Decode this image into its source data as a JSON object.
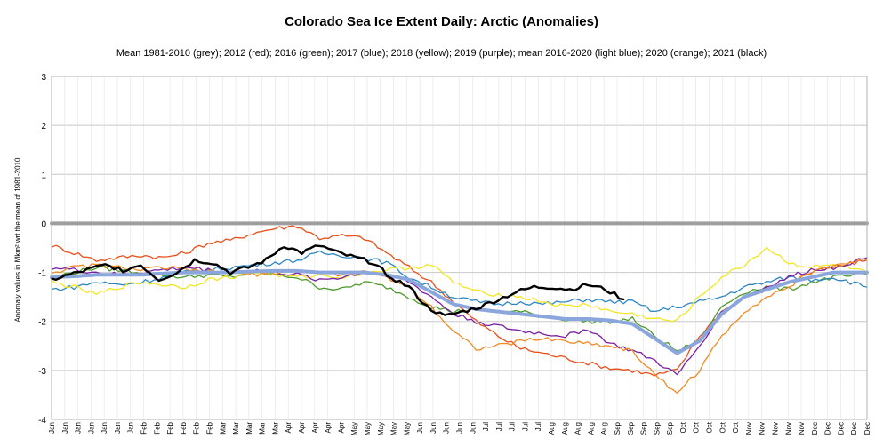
{
  "chart_data": {
    "type": "line",
    "title": "Colorado Sea Ice Extent Daily: Arctic (Anomalies)",
    "subtitle": "Mean 1981-2010 (grey); 2012 (red); 2016 (green); 2017 (blue); 2018 (yellow); 2019 (purple); mean 2016-2020 (light blue); 2020 (orange); 2021 (black)",
    "ylabel": "Anomaly values in Mkm² wrt the mean of 1981-2010",
    "ylim": [
      -4,
      3
    ],
    "yticks": [
      "3",
      "2",
      "1",
      "0",
      "-1",
      "-2",
      "-3",
      "-4"
    ],
    "xticks": [
      "Jan",
      "Jan",
      "Jan",
      "Jan",
      "Jan",
      "Jan",
      "Jan",
      "Feb",
      "Feb",
      "Feb",
      "Feb",
      "Feb",
      "Feb",
      "Mar",
      "Mar",
      "Mar",
      "Mar",
      "Mar",
      "Apr",
      "Apr",
      "Apr",
      "Apr",
      "Apr",
      "May",
      "May",
      "May",
      "May",
      "May",
      "Jun",
      "Jun",
      "Jun",
      "Jun",
      "Jun",
      "Jul",
      "Jul",
      "Jul",
      "Jul",
      "Jul",
      "Aug",
      "Aug",
      "Aug",
      "Aug",
      "Aug",
      "Sep",
      "Sep",
      "Sep",
      "Sep",
      "Sep",
      "Oct",
      "Oct",
      "Oct",
      "Oct",
      "Oct",
      "Nov",
      "Nov",
      "Nov",
      "Nov",
      "Nov",
      "Dec",
      "Dec",
      "Dec",
      "Dec",
      "Dec"
    ],
    "grid": true,
    "x_unit": "day_of_year",
    "series": [
      {
        "name": "Mean 1981-2010",
        "color": "#9e9e9e",
        "width": 4,
        "x": [
          0,
          365
        ],
        "y": [
          0,
          0
        ]
      },
      {
        "name": "2012",
        "color": "#e8501a",
        "width": 1.3,
        "x": [
          0,
          10,
          20,
          30,
          40,
          50,
          60,
          70,
          80,
          90,
          100,
          110,
          120,
          130,
          140,
          150,
          160,
          170,
          180,
          190,
          200,
          210,
          220,
          230,
          240,
          250,
          260,
          270,
          280,
          290,
          300,
          310,
          320,
          330,
          340,
          350,
          365
        ],
        "y": [
          -0.45,
          -0.6,
          -0.75,
          -0.7,
          -0.65,
          -0.7,
          -0.6,
          -0.4,
          -0.35,
          -0.2,
          -0.1,
          -0.05,
          -0.3,
          -0.25,
          -0.3,
          -0.6,
          -0.9,
          -1.2,
          -1.6,
          -2.0,
          -2.3,
          -2.55,
          -2.65,
          -2.75,
          -2.85,
          -2.95,
          -3.0,
          -3.1,
          -3.0,
          -2.3,
          -1.8,
          -1.5,
          -1.35,
          -1.2,
          -1.0,
          -0.9,
          -0.75
        ]
      },
      {
        "name": "2016",
        "color": "#4e9a2a",
        "width": 1.3,
        "x": [
          0,
          10,
          20,
          30,
          40,
          50,
          60,
          70,
          80,
          90,
          100,
          110,
          120,
          130,
          140,
          150,
          160,
          170,
          180,
          190,
          200,
          210,
          220,
          230,
          240,
          250,
          260,
          270,
          280,
          290,
          300,
          310,
          320,
          330,
          340,
          350,
          365
        ],
        "y": [
          -1.1,
          -1.0,
          -0.9,
          -0.95,
          -1.0,
          -1.05,
          -1.1,
          -1.05,
          -1.1,
          -1.0,
          -1.05,
          -1.1,
          -1.3,
          -1.35,
          -1.2,
          -1.3,
          -1.5,
          -1.7,
          -1.8,
          -1.75,
          -1.8,
          -1.8,
          -1.9,
          -1.95,
          -2.0,
          -2.0,
          -1.95,
          -2.3,
          -2.6,
          -2.4,
          -1.7,
          -1.4,
          -1.3,
          -1.35,
          -1.2,
          -1.1,
          -1.05
        ]
      },
      {
        "name": "2017",
        "color": "#2e86c1",
        "width": 1.3,
        "x": [
          0,
          10,
          20,
          30,
          40,
          50,
          60,
          70,
          80,
          90,
          100,
          110,
          120,
          130,
          140,
          150,
          160,
          170,
          180,
          190,
          200,
          210,
          220,
          230,
          240,
          250,
          260,
          270,
          280,
          290,
          300,
          310,
          320,
          330,
          340,
          350,
          365
        ],
        "y": [
          -1.35,
          -1.3,
          -1.2,
          -1.25,
          -1.2,
          -1.1,
          -1.0,
          -0.95,
          -0.9,
          -0.85,
          -0.8,
          -0.75,
          -0.6,
          -0.65,
          -0.7,
          -0.8,
          -1.1,
          -1.3,
          -1.5,
          -1.6,
          -1.65,
          -1.6,
          -1.65,
          -1.6,
          -1.55,
          -1.6,
          -1.6,
          -1.8,
          -1.7,
          -1.6,
          -1.5,
          -1.3,
          -1.2,
          -1.1,
          -1.15,
          -1.1,
          -1.3
        ]
      },
      {
        "name": "2018",
        "color": "#f2e622",
        "width": 1.3,
        "x": [
          0,
          10,
          20,
          30,
          40,
          50,
          60,
          70,
          80,
          90,
          100,
          110,
          120,
          130,
          140,
          150,
          160,
          170,
          180,
          190,
          200,
          210,
          220,
          230,
          240,
          250,
          260,
          270,
          280,
          290,
          300,
          310,
          320,
          330,
          340,
          350,
          365
        ],
        "y": [
          -1.2,
          -1.3,
          -1.45,
          -1.3,
          -1.2,
          -1.25,
          -1.3,
          -1.15,
          -1.1,
          -1.0,
          -1.05,
          -1.1,
          -1.05,
          -1.1,
          -1.0,
          -0.95,
          -0.9,
          -0.85,
          -1.2,
          -1.4,
          -1.45,
          -1.5,
          -1.6,
          -1.7,
          -1.65,
          -1.8,
          -1.85,
          -1.95,
          -2.0,
          -1.5,
          -1.1,
          -0.85,
          -0.5,
          -0.8,
          -0.9,
          -0.85,
          -1.0
        ]
      },
      {
        "name": "2019",
        "color": "#7b1fa2",
        "width": 1.3,
        "x": [
          0,
          10,
          20,
          30,
          40,
          50,
          60,
          70,
          80,
          90,
          100,
          110,
          120,
          130,
          140,
          150,
          160,
          170,
          180,
          190,
          200,
          210,
          220,
          230,
          240,
          250,
          260,
          270,
          280,
          290,
          300,
          310,
          320,
          330,
          340,
          350,
          365
        ],
        "y": [
          -0.9,
          -0.95,
          -1.0,
          -1.05,
          -1.0,
          -0.95,
          -0.9,
          -0.95,
          -1.0,
          -0.95,
          -1.0,
          -1.05,
          -1.15,
          -1.1,
          -1.0,
          -1.05,
          -1.2,
          -1.5,
          -1.85,
          -2.0,
          -2.1,
          -2.2,
          -2.25,
          -2.3,
          -2.15,
          -2.45,
          -2.6,
          -2.8,
          -3.1,
          -2.5,
          -1.8,
          -1.5,
          -1.3,
          -1.1,
          -0.95,
          -0.9,
          -0.7
        ]
      },
      {
        "name": "mean 2016-2020",
        "color": "#8aa6dc",
        "width": 4,
        "x": [
          0,
          10,
          20,
          30,
          40,
          50,
          60,
          70,
          80,
          90,
          100,
          110,
          120,
          130,
          140,
          150,
          160,
          170,
          180,
          190,
          200,
          210,
          220,
          230,
          240,
          250,
          260,
          270,
          280,
          290,
          300,
          310,
          320,
          330,
          340,
          350,
          365
        ],
        "y": [
          -1.1,
          -1.08,
          -1.05,
          -1.05,
          -1.05,
          -1.02,
          -1.0,
          -1.0,
          -1.0,
          -0.98,
          -0.97,
          -0.97,
          -1.0,
          -1.0,
          -1.0,
          -1.05,
          -1.15,
          -1.4,
          -1.65,
          -1.75,
          -1.8,
          -1.85,
          -1.9,
          -1.95,
          -1.95,
          -1.98,
          -2.05,
          -2.35,
          -2.65,
          -2.4,
          -1.85,
          -1.5,
          -1.35,
          -1.2,
          -1.1,
          -1.0,
          -1.0
        ]
      },
      {
        "name": "2020",
        "color": "#f08a24",
        "width": 1.3,
        "x": [
          0,
          10,
          20,
          30,
          40,
          50,
          60,
          70,
          80,
          90,
          100,
          110,
          120,
          130,
          140,
          150,
          160,
          170,
          180,
          190,
          200,
          210,
          220,
          230,
          240,
          250,
          260,
          270,
          280,
          290,
          300,
          310,
          320,
          330,
          340,
          350,
          365
        ],
        "y": [
          -1.0,
          -0.9,
          -0.85,
          -0.9,
          -0.95,
          -0.9,
          -0.95,
          -1.0,
          -1.0,
          -1.05,
          -1.0,
          -0.95,
          -1.0,
          -1.05,
          -1.0,
          -1.1,
          -1.3,
          -1.7,
          -2.2,
          -2.55,
          -2.5,
          -2.4,
          -2.35,
          -2.4,
          -2.45,
          -2.5,
          -2.6,
          -3.1,
          -3.45,
          -3.0,
          -2.3,
          -1.8,
          -1.5,
          -1.3,
          -1.0,
          -0.85,
          -0.75
        ]
      },
      {
        "name": "2021",
        "color": "#000000",
        "width": 2.4,
        "x": [
          0,
          8,
          16,
          24,
          32,
          40,
          48,
          56,
          64,
          72,
          80,
          88,
          96,
          104,
          112,
          120,
          128,
          136,
          144,
          152,
          160,
          168,
          176,
          184,
          192,
          200,
          208,
          216,
          224,
          232,
          240,
          248,
          256
        ],
        "y": [
          -1.15,
          -1.05,
          -0.95,
          -0.85,
          -0.95,
          -0.85,
          -1.15,
          -1.0,
          -0.75,
          -0.8,
          -1.0,
          -0.9,
          -0.75,
          -0.45,
          -0.6,
          -0.45,
          -0.6,
          -0.7,
          -0.8,
          -1.1,
          -1.3,
          -1.7,
          -1.9,
          -1.8,
          -1.7,
          -1.55,
          -1.4,
          -1.3,
          -1.3,
          -1.35,
          -1.25,
          -1.35,
          -1.55
        ]
      }
    ]
  }
}
